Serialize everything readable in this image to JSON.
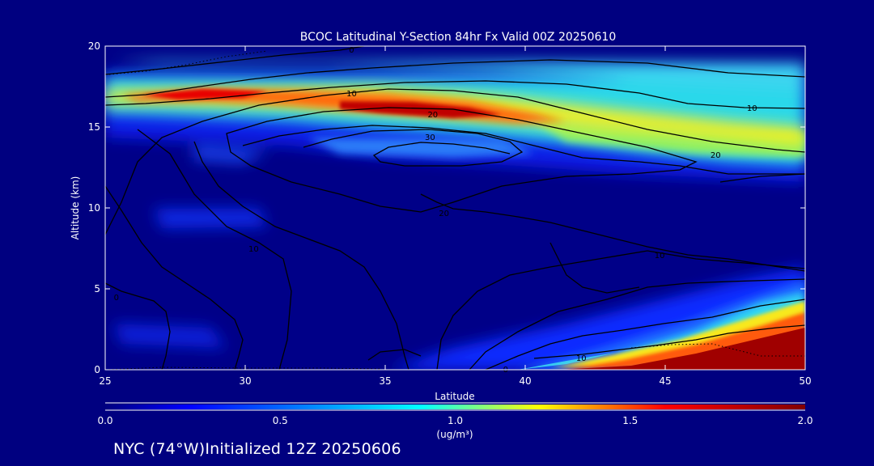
{
  "chart_data": {
    "type": "heatmap",
    "title": "BCOC Latitudinal Y-Section 84hr  Fx Valid 00Z 20250610",
    "xlabel": "Latitude",
    "ylabel": "Altitude (km)",
    "xlim": [
      25,
      50
    ],
    "ylim": [
      0,
      20
    ],
    "xticks": [
      25,
      30,
      35,
      40,
      45,
      50
    ],
    "yticks": [
      0,
      5,
      10,
      15,
      20
    ],
    "colorbar": {
      "min": 0.0,
      "max": 2.0,
      "ticks": [
        "0.0",
        "0.5",
        "1.0",
        "1.5",
        "2.0"
      ],
      "units": "(ug/m³)",
      "colors": [
        "#000080",
        "#0000ff",
        "#00ffff",
        "#ffff00",
        "#ff0000",
        "#800000"
      ]
    },
    "high_value_bands": [
      {
        "feature": "upper tropospheric layer",
        "lat_range": [
          25,
          50
        ],
        "alt_km": [
          12.5,
          18
        ],
        "peak_value": 2.0,
        "peak_lat": 28,
        "peak_alt_km": 17
      },
      {
        "feature": "lower tropospheric plume",
        "lat_range": [
          38,
          50
        ],
        "alt_km": [
          0,
          6
        ],
        "peak_value": 2.0,
        "peak_lat": 49,
        "peak_alt_km": 1
      }
    ],
    "contour_labels": [
      {
        "text": "0",
        "lat": 33.8,
        "alt_km": 19.8
      },
      {
        "text": "10",
        "lat": 33.8,
        "alt_km": 17.1
      },
      {
        "text": "20",
        "lat": 36.7,
        "alt_km": 15.8
      },
      {
        "text": "30",
        "lat": 36.6,
        "alt_km": 14.4
      },
      {
        "text": "10",
        "lat": 48.1,
        "alt_km": 16.2
      },
      {
        "text": "20",
        "lat": 46.8,
        "alt_km": 13.3
      },
      {
        "text": "20",
        "lat": 37.1,
        "alt_km": 9.7
      },
      {
        "text": "10",
        "lat": 30.3,
        "alt_km": 7.5
      },
      {
        "text": "10",
        "lat": 44.8,
        "alt_km": 7.1
      },
      {
        "text": "0",
        "lat": 25.4,
        "alt_km": 4.5
      },
      {
        "text": "10",
        "lat": 42.0,
        "alt_km": 0.75
      },
      {
        "text": "0",
        "lat": 39.3,
        "alt_km": 0.05
      }
    ]
  },
  "footer": {
    "location_init": "NYC (74°W)Initialized 12Z 20250606"
  }
}
